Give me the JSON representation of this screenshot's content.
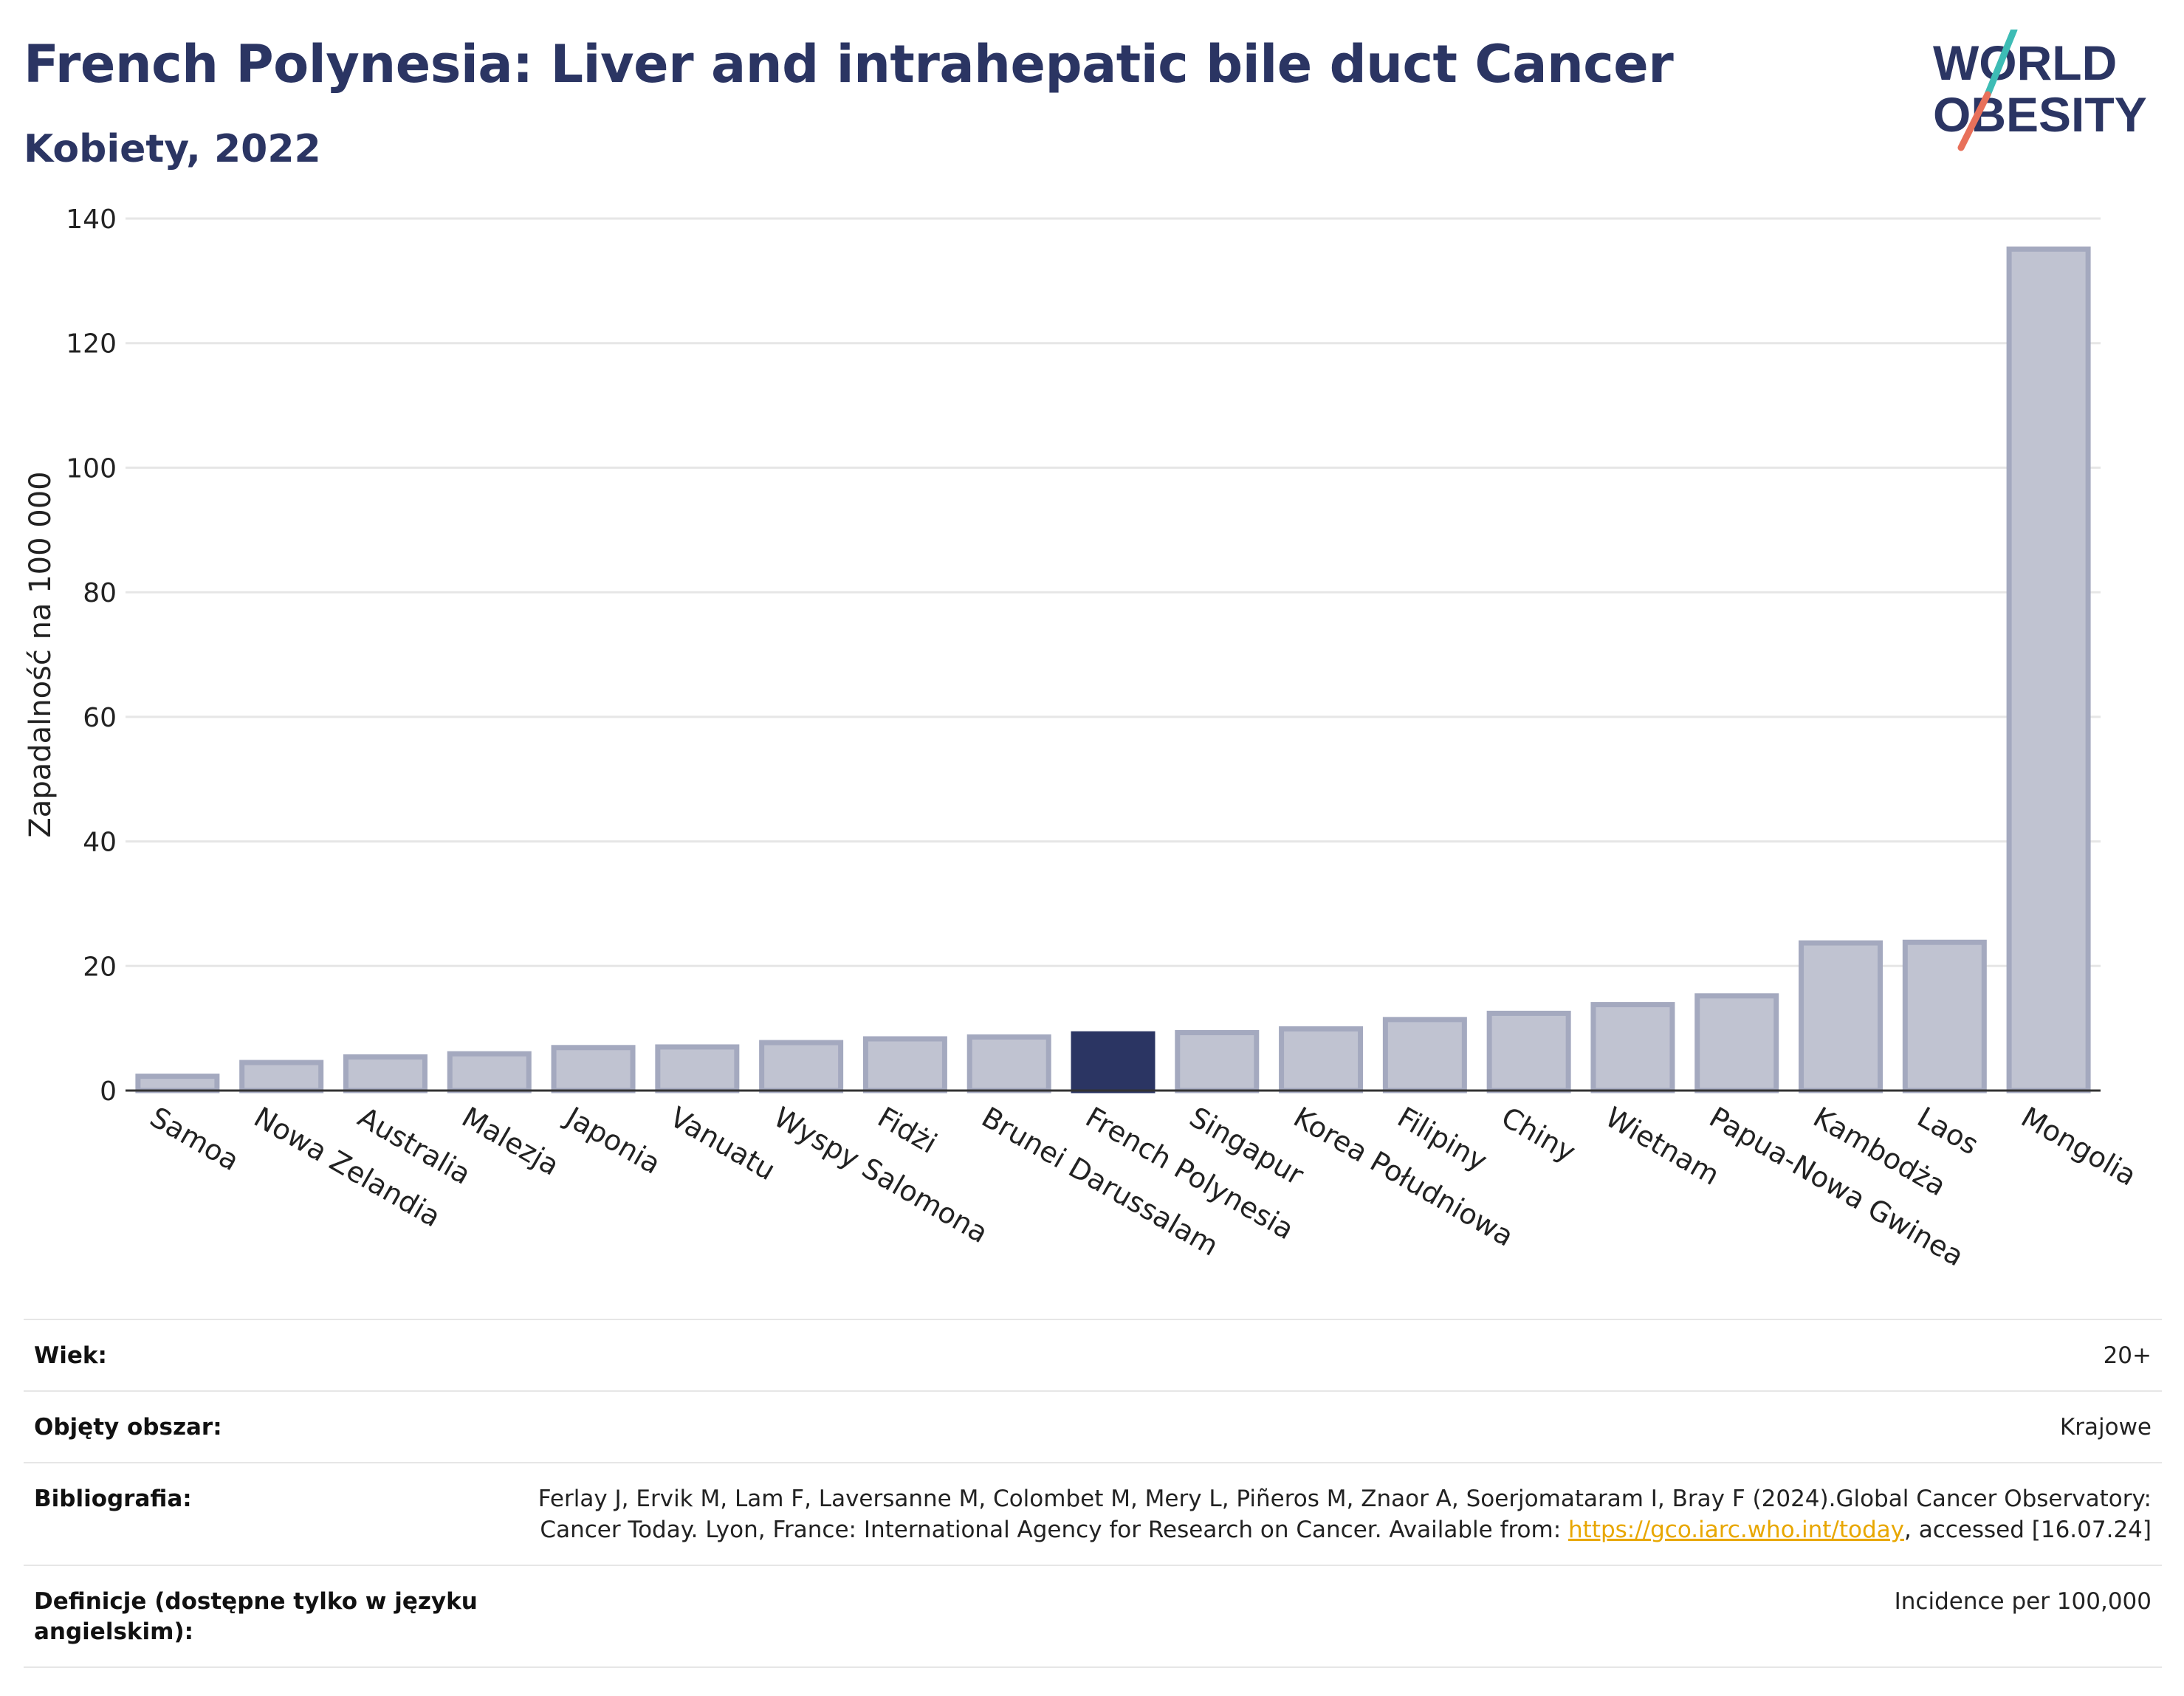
{
  "title": "French Polynesia: Liver and intrahepatic bile duct Cancer",
  "subtitle": "Kobiety, 2022",
  "logo": {
    "line1": "WORLD",
    "line2": "OBESITY"
  },
  "colors": {
    "highlight": "#2b3563",
    "bar": "#c0c3d1",
    "bar_edge": "#a4a9bf",
    "title": "#2b3563",
    "grid": "#e6e6e6",
    "logo_teal": "#3dbcb5",
    "logo_red": "#e8705a",
    "link": "#e8a700"
  },
  "chart_data": {
    "type": "bar",
    "title": "French Polynesia: Liver and intrahepatic bile duct Cancer",
    "subtitle": "Kobiety, 2022",
    "ylabel": "Zapadalność na 100 000",
    "ylim": [
      0,
      140
    ],
    "yticks": [
      0,
      20,
      40,
      60,
      80,
      100,
      120,
      140
    ],
    "grid": true,
    "highlight": "French Polynesia",
    "categories": [
      "Samoa",
      "Nowa Zelandia",
      "Australia",
      "Malezja",
      "Japonia",
      "Vanuatu",
      "Wyspy Salomona",
      "Fidżi",
      "Brunei Darussalam",
      "French Polynesia",
      "Singapur",
      "Korea Południowa",
      "Filipiny",
      "Chiny",
      "Wietnam",
      "Papua-Nowa Gwinea",
      "Kambodża",
      "Laos",
      "Mongolia"
    ],
    "values": [
      2.3,
      4.5,
      5.4,
      5.9,
      6.9,
      7.0,
      7.7,
      8.3,
      8.6,
      9.1,
      9.3,
      9.9,
      11.4,
      12.4,
      13.8,
      15.2,
      23.7,
      23.8,
      135.1
    ]
  },
  "meta": [
    {
      "key": "Wiek:",
      "value": "20+"
    },
    {
      "key": "Objęty obszar:",
      "value": "Krajowe"
    },
    {
      "key": "Bibliografia:",
      "value_pre": "Ferlay J, Ervik M, Lam F, Laversanne M, Colombet M, Mery L, Piñeros M, Znaor A, Soerjomataram I, Bray F (2024).Global Cancer Observatory: Cancer Today. Lyon, France: International Agency for Research on Cancer. Available from: ",
      "link": "https://gco.iarc.who.int/today",
      "value_post": ", accessed [16.07.24]"
    },
    {
      "key": "Definicje (dostępne tylko w języku angielskim):",
      "value": "Incidence per 100,000"
    }
  ]
}
